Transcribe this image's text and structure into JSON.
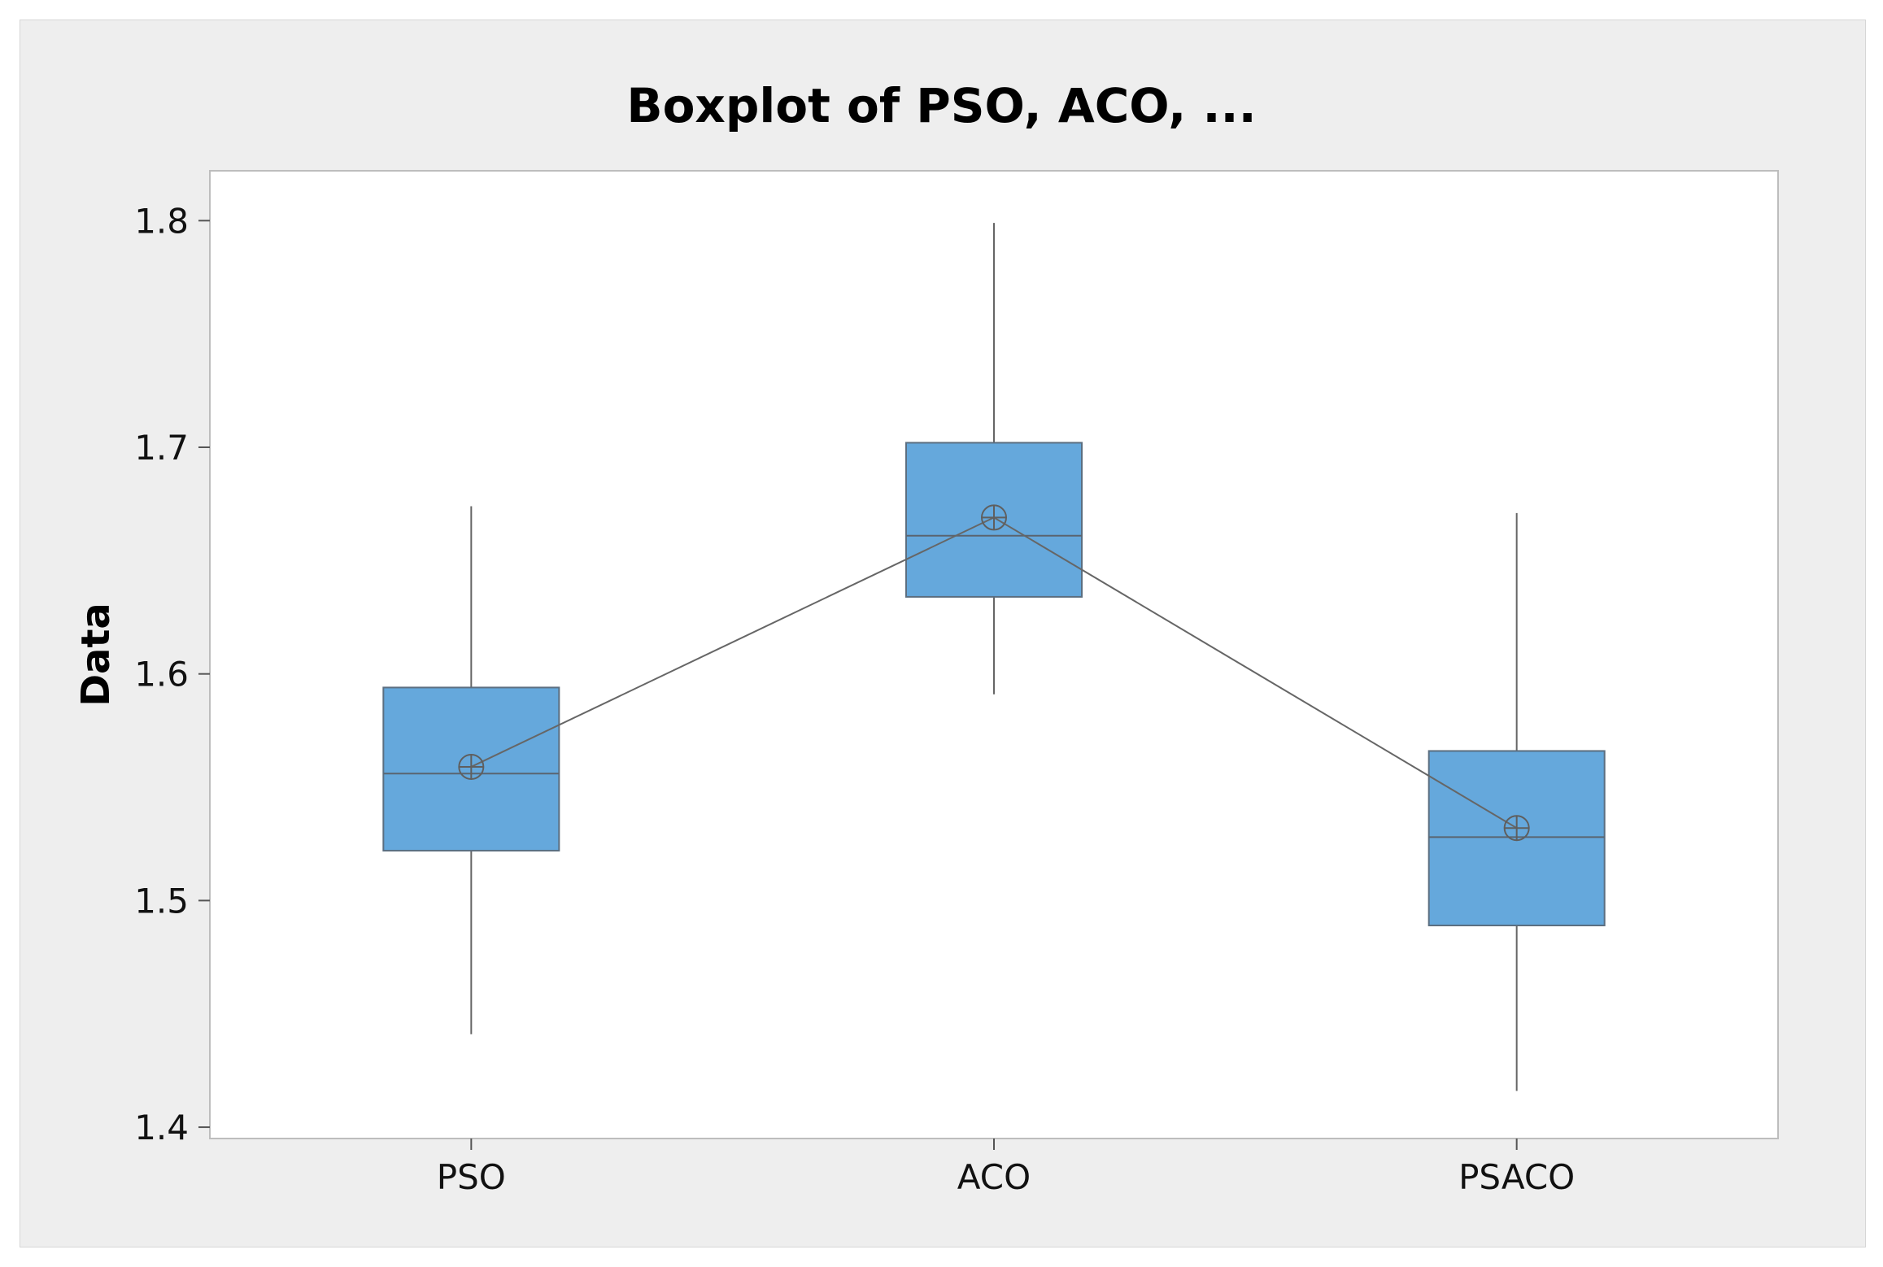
{
  "chart_data": {
    "type": "boxplot",
    "title": "Boxplot of PSO, ACO, ...",
    "xlabel": "",
    "ylabel": "Data",
    "ylim": [
      1.395,
      1.822
    ],
    "yticks": [
      1.4,
      1.5,
      1.6,
      1.7,
      1.8
    ],
    "categories": [
      "PSO",
      "ACO",
      "PSACO"
    ],
    "boxes": [
      {
        "category": "PSO",
        "min": 1.441,
        "q1": 1.522,
        "median": 1.556,
        "q3": 1.594,
        "max": 1.674,
        "mean": 1.559
      },
      {
        "category": "ACO",
        "min": 1.591,
        "q1": 1.634,
        "median": 1.661,
        "q3": 1.702,
        "max": 1.799,
        "mean": 1.669
      },
      {
        "category": "PSACO",
        "min": 1.416,
        "q1": 1.489,
        "median": 1.528,
        "q3": 1.566,
        "max": 1.671,
        "mean": 1.532
      }
    ],
    "mean_connect_line": true,
    "grid": false,
    "colors": {
      "box_fill": "#65a8dc",
      "box_stroke": "#5b6e80",
      "line": "#666666",
      "panel_bg": "#eeeeee",
      "plot_bg": "#ffffff"
    }
  }
}
